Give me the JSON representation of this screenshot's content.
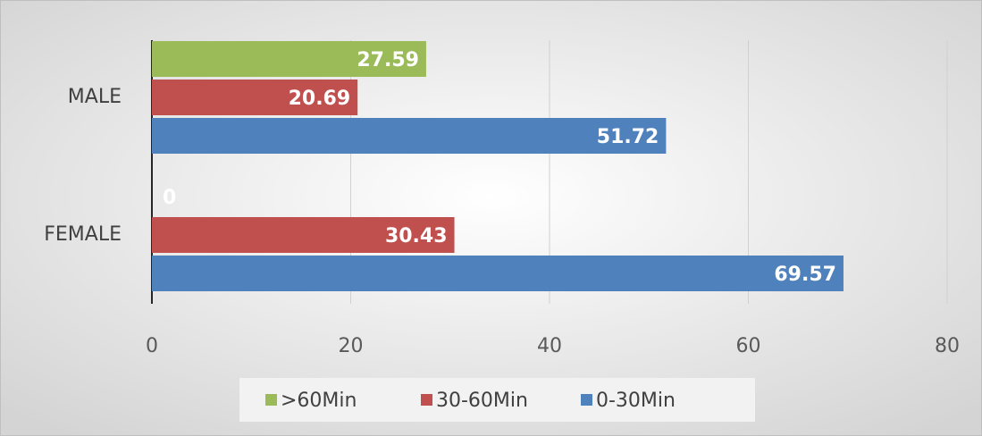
{
  "chart_data": {
    "type": "hbar",
    "categories": [
      "MALE",
      "FEMALE"
    ],
    "series": [
      {
        "name": ">60Min",
        "color": "#9bbb59",
        "values": [
          27.59,
          0
        ]
      },
      {
        "name": "30-60Min",
        "color": "#c0504d",
        "values": [
          20.69,
          30.43
        ]
      },
      {
        "name": "0-30Min",
        "color": "#4f81bd",
        "values": [
          51.72,
          69.57
        ]
      }
    ],
    "xlim": [
      0,
      80
    ],
    "xticks": [
      0,
      20,
      40,
      60,
      80
    ],
    "grid": true,
    "legend": "bottom"
  }
}
